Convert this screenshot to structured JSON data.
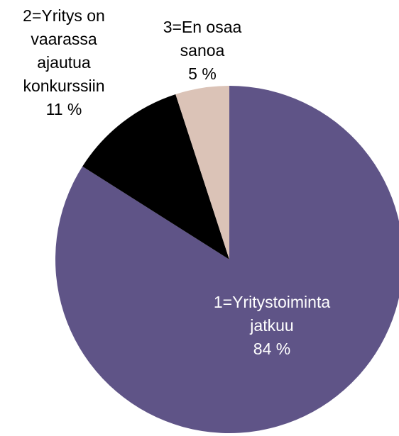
{
  "chart_data": {
    "type": "pie",
    "categories": [
      "1=Yritystoiminta\njatkuu",
      "2=Yritys on\nvaarassa\najautua\nkonkurssiin",
      "3=En osaa\nsanoa"
    ],
    "values": [
      84,
      11,
      5
    ],
    "value_labels": [
      "84 %",
      "11 %",
      "5 %"
    ],
    "colors": [
      "#5f5487",
      "#000000",
      "#dbc3b7"
    ]
  }
}
